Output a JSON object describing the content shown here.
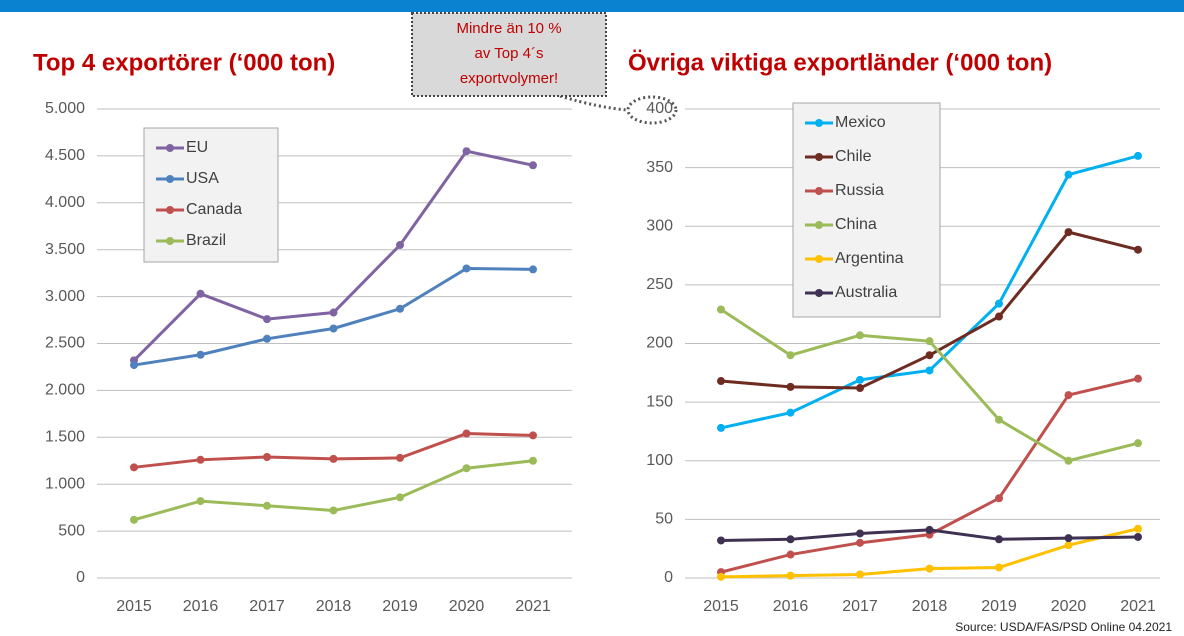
{
  "chart_data": [
    {
      "type": "line",
      "title": "Top 4 exportörer  (‘000 ton)",
      "categories": [
        "2015",
        "2016",
        "2017",
        "2018",
        "2019",
        "2020",
        "2021"
      ],
      "series": [
        {
          "name": "EU",
          "color": "#8064a2",
          "values": [
            2320,
            3030,
            2760,
            2830,
            3550,
            4550,
            4400
          ]
        },
        {
          "name": "USA",
          "color": "#4f81bd",
          "values": [
            2270,
            2380,
            2550,
            2660,
            2870,
            3300,
            3290
          ]
        },
        {
          "name": "Canada",
          "color": "#c0504d",
          "values": [
            1180,
            1260,
            1290,
            1270,
            1280,
            1540,
            1520
          ]
        },
        {
          "name": "Brazil",
          "color": "#9bbb59",
          "values": [
            620,
            820,
            770,
            720,
            860,
            1170,
            1250
          ]
        }
      ],
      "ylim": [
        0,
        5000
      ],
      "yticks": [
        0,
        500,
        {
          "value": 1000,
          "label": "1.000"
        },
        {
          "value": 1500,
          "label": "1.500"
        },
        {
          "value": 2000,
          "label": "2.000"
        },
        {
          "value": 2500,
          "label": "2.500"
        },
        {
          "value": 3000,
          "label": "3.000"
        },
        {
          "value": 3500,
          "label": "3.500"
        },
        {
          "value": 4000,
          "label": "4.000"
        },
        {
          "value": 4500,
          "label": "4.500"
        },
        {
          "value": 5000,
          "label": "5.000"
        }
      ],
      "grid": true,
      "legend": "upper left"
    },
    {
      "type": "line",
      "title": "Övriga viktiga exportländer  (‘000 ton)",
      "categories": [
        "2015",
        "2016",
        "2017",
        "2018",
        "2019",
        "2020",
        "2021"
      ],
      "series": [
        {
          "name": "Mexico",
          "color": "#00b0f0",
          "values": [
            128,
            141,
            169,
            177,
            234,
            344,
            360
          ]
        },
        {
          "name": "Chile",
          "color": "#6e2b22",
          "values": [
            168,
            163,
            162,
            190,
            223,
            295,
            280
          ]
        },
        {
          "name": "Russia",
          "color": "#c0504d",
          "values": [
            5,
            20,
            30,
            37,
            68,
            156,
            170
          ]
        },
        {
          "name": "China",
          "color": "#9bbb59",
          "values": [
            229,
            190,
            207,
            202,
            135,
            100,
            115
          ]
        },
        {
          "name": "Argentina",
          "color": "#ffc000",
          "values": [
            1,
            2,
            3,
            8,
            9,
            28,
            42
          ]
        },
        {
          "name": "Australia",
          "color": "#3f3151",
          "values": [
            32,
            33,
            38,
            41,
            33,
            34,
            35
          ]
        }
      ],
      "ylim": [
        0,
        400
      ],
      "yticks": [
        0,
        50,
        100,
        150,
        200,
        250,
        300,
        350,
        400
      ],
      "grid": true,
      "legend": "upper left"
    }
  ],
  "annotation": [
    "Mindre än 10 %",
    "av Top 4´s",
    "exportvolymer!"
  ],
  "source": "Source: USDA/FAS/PSD Online 04.2021"
}
